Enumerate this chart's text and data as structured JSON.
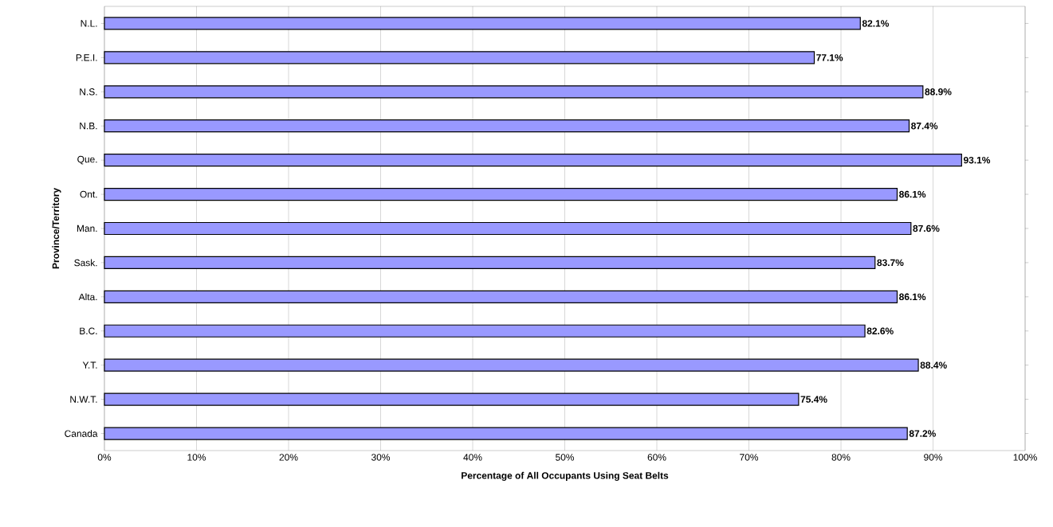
{
  "chart_data": {
    "type": "bar",
    "orientation": "horizontal",
    "xlabel": "Percentage of All Occupants Using Seat Belts",
    "ylabel": "Province/Territory",
    "categories": [
      "N.L.",
      "P.E.I.",
      "N.S.",
      "N.B.",
      "Que.",
      "Ont.",
      "Man.",
      "Sask.",
      "Alta.",
      "B.C.",
      "Y.T.",
      "N.W.T.",
      "Canada"
    ],
    "values": [
      82.1,
      77.1,
      88.9,
      87.4,
      93.1,
      86.1,
      87.6,
      83.7,
      86.1,
      82.6,
      88.4,
      75.4,
      87.2
    ],
    "value_labels": [
      "82.1%",
      "77.1%",
      "88.9%",
      "87.4%",
      "93.1%",
      "86.1%",
      "87.6%",
      "83.7%",
      "86.1%",
      "82.6%",
      "88.4%",
      "75.4%",
      "87.2%"
    ],
    "color": "#9999ff",
    "xlim": [
      0,
      100
    ],
    "xticks": [
      {
        "value": 0,
        "label": "0%"
      },
      {
        "value": 10,
        "label": "10%"
      },
      {
        "value": 20,
        "label": "20%"
      },
      {
        "value": 30,
        "label": "30%"
      },
      {
        "value": 40,
        "label": "40%"
      },
      {
        "value": 50,
        "label": "50%"
      },
      {
        "value": 60,
        "label": "60%"
      },
      {
        "value": 70,
        "label": "70%"
      },
      {
        "value": 80,
        "label": "80%"
      },
      {
        "value": 90,
        "label": "90%"
      },
      {
        "value": 100,
        "label": "100%"
      }
    ],
    "grid": "x"
  }
}
